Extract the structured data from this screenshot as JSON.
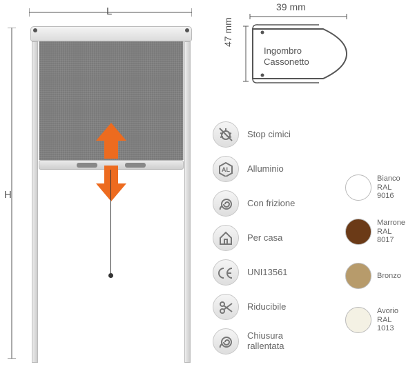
{
  "accent_color": "#ed6b1f",
  "diagram": {
    "width_label": "L",
    "height_label": "H"
  },
  "profile": {
    "width_mm": "39 mm",
    "height_mm": "47 mm",
    "label_line1": "Ingombro",
    "label_line2": "Cassonetto",
    "stroke": "#555555"
  },
  "features": [
    {
      "icon": "bug",
      "label": "Stop cimici"
    },
    {
      "icon": "al",
      "label": "Alluminio"
    },
    {
      "icon": "snail",
      "label": "Con frizione"
    },
    {
      "icon": "house",
      "label": "Per casa"
    },
    {
      "icon": "ce",
      "label": "UNI13561"
    },
    {
      "icon": "scissor",
      "label": "Riducibile"
    },
    {
      "icon": "snail",
      "label": "Chiusura\nrallentata"
    }
  ],
  "colors": [
    {
      "name": "Bianco",
      "code": "RAL 9016",
      "hex": "#ffffff"
    },
    {
      "name": "Marrone",
      "code": "RAL 8017",
      "hex": "#6b3a17"
    },
    {
      "name": "Bronzo",
      "code": "",
      "hex": "#b79b6b"
    },
    {
      "name": "Avorio",
      "code": "RAL 1013",
      "hex": "#f4f1e4"
    }
  ]
}
